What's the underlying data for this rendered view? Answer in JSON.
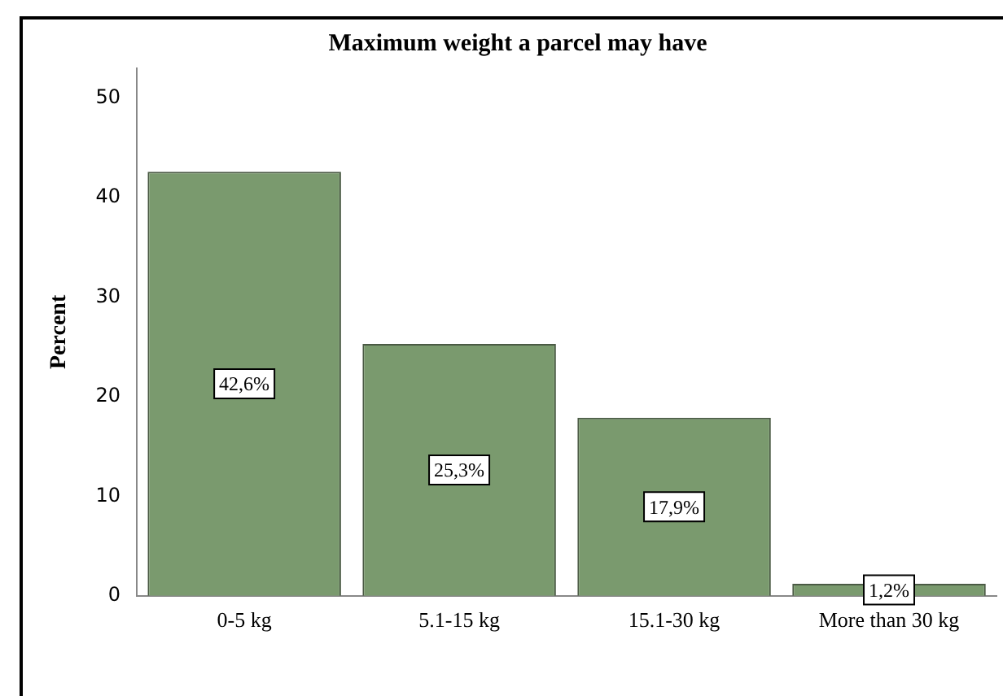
{
  "chart_data": {
    "type": "bar",
    "title": "Maximum weight a parcel may have",
    "ylabel": "Percent",
    "categories": [
      "0-5 kg",
      "5.1-15 kg",
      "15.1-30 kg",
      "More than 30 kg"
    ],
    "values": [
      42.6,
      25.3,
      17.9,
      1.2
    ],
    "color": "#7a9a6e",
    "value_labels": [
      "42,6%",
      "25,3%",
      "17,9%",
      "1,2%"
    ],
    "ylim": [
      0,
      53
    ],
    "yticks": [
      0,
      10,
      20,
      30,
      40,
      50
    ],
    "grid": false,
    "legend": false
  }
}
